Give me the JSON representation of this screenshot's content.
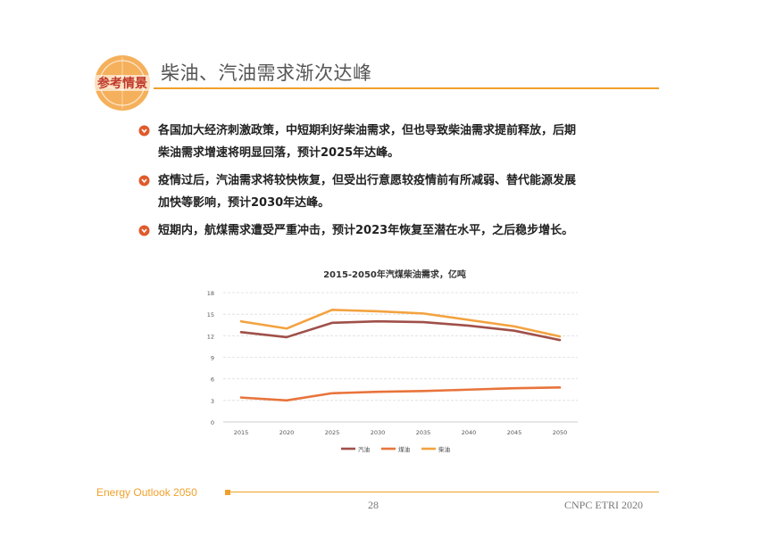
{
  "header": {
    "logo_text": "参考情景",
    "title": "柴油、汽油需求渐次达峰"
  },
  "bullets": [
    {
      "line1": "各国加大经济刺激政策，中短期利好柴油需求，但也导致柴油需求提前释放，后期",
      "line2": "柴油需求增速将明显回落，预计2025年达峰。"
    },
    {
      "line1": "疫情过后，汽油需求将较快恢复，但受出行意愿较疫情前有所减弱、替代能源发展",
      "line2": "加快等影响，预计2030年达峰。"
    },
    {
      "line1": "短期内，航煤需求遭受严重冲击，预计2023年恢复至潜在水平，之后稳步增长。",
      "line2": ""
    }
  ],
  "colors": {
    "accent": "#f0a12b",
    "gasoline": "#a0504a",
    "jetfuel": "#e8743b",
    "diesel": "#f3a23f"
  },
  "chart_data": {
    "type": "line",
    "title": "2015-2050年汽煤柴油需求，亿吨",
    "categories": [
      "2015",
      "2020",
      "2025",
      "2030",
      "2035",
      "2040",
      "2045",
      "2050"
    ],
    "ylim": [
      0,
      18
    ],
    "yticks": [
      "0",
      "3",
      "6",
      "9",
      "12",
      "15",
      "18"
    ],
    "grid": true,
    "legend_position": "bottom",
    "series": [
      {
        "name": "汽油",
        "color": "#a0504a",
        "values": [
          12.5,
          11.8,
          13.8,
          14.0,
          13.9,
          13.4,
          12.7,
          11.4
        ]
      },
      {
        "name": "煤油",
        "color": "#e8743b",
        "values": [
          3.4,
          3.0,
          4.0,
          4.2,
          4.3,
          4.5,
          4.7,
          4.8
        ]
      },
      {
        "name": "柴油",
        "color": "#f3a23f",
        "values": [
          14.0,
          13.0,
          15.6,
          15.4,
          15.1,
          14.2,
          13.3,
          11.9
        ]
      }
    ]
  },
  "footer": {
    "left": "Energy Outlook 2050",
    "page": "28",
    "right": "CNPC ETRI 2020"
  }
}
